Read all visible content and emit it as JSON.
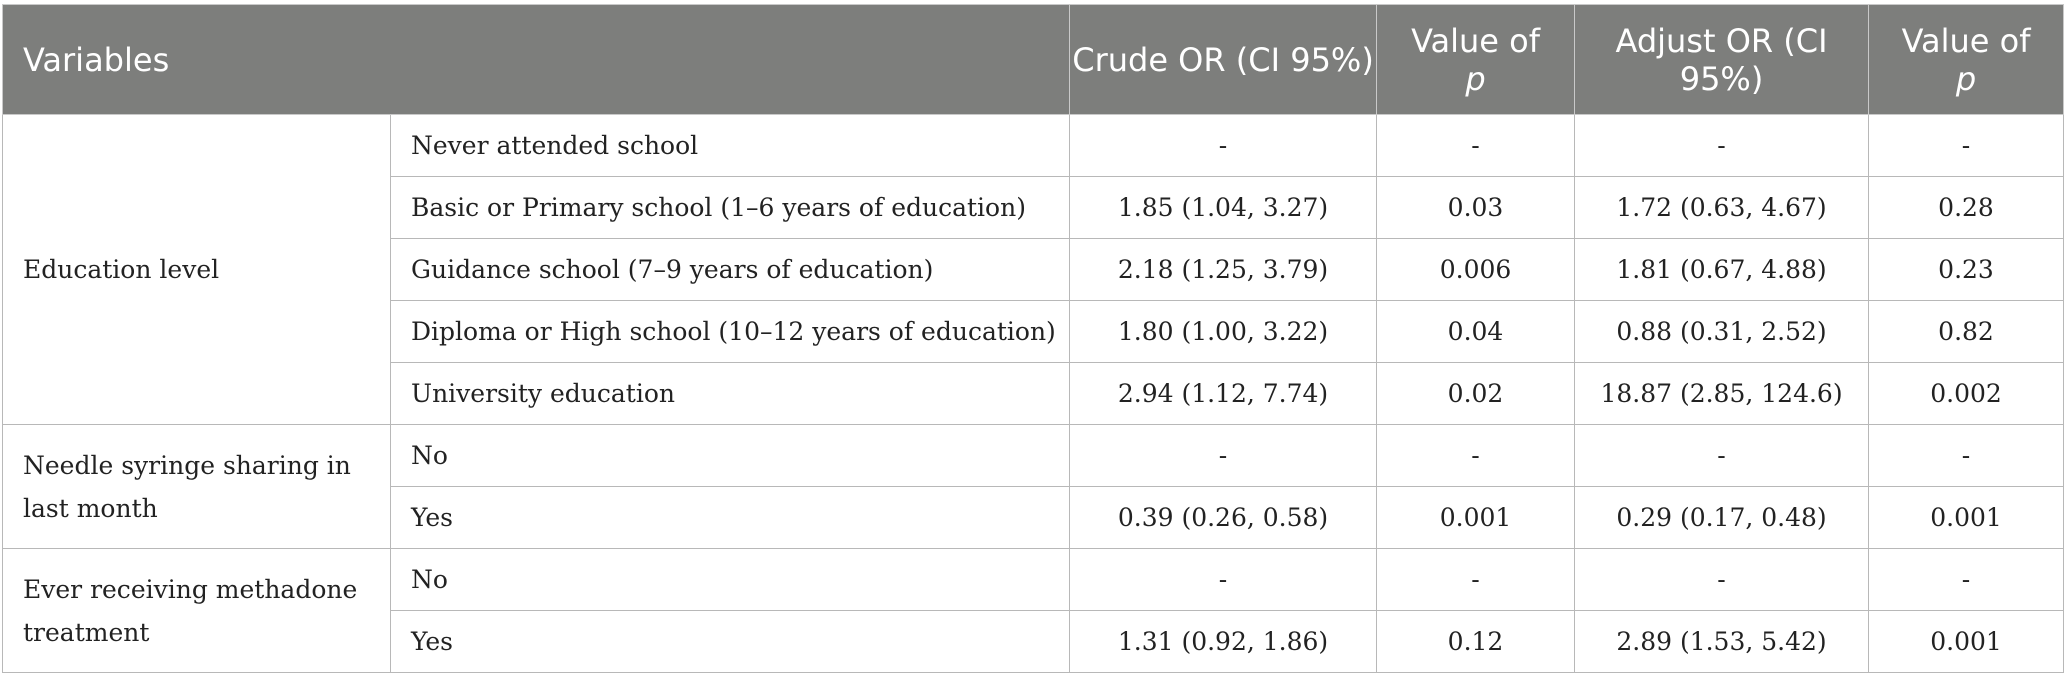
{
  "header": {
    "variables": "Variables",
    "crude_or": "Crude OR (CI 95%)",
    "value_of": "Value of",
    "p": "p",
    "adjust_or": "Adjust OR (CI 95%)",
    "value_of_2": "Value of",
    "p_2": "p"
  },
  "groups": [
    {
      "label": "Education level",
      "rows": [
        {
          "sub": "Never attended school",
          "crude": "-",
          "p1": "-",
          "adjust": "-",
          "p2": "-"
        },
        {
          "sub": "Basic or Primary school (1–6 years of education)",
          "crude": "1.85 (1.04, 3.27)",
          "p1": "0.03",
          "adjust": "1.72 (0.63, 4.67)",
          "p2": "0.28"
        },
        {
          "sub": "Guidance school (7–9 years of education)",
          "crude": "2.18 (1.25, 3.79)",
          "p1": "0.006",
          "adjust": "1.81 (0.67, 4.88)",
          "p2": "0.23"
        },
        {
          "sub": "Diploma or High school (10–12 years of education)",
          "crude": "1.80 (1.00, 3.22)",
          "p1": "0.04",
          "adjust": "0.88 (0.31, 2.52)",
          "p2": "0.82"
        },
        {
          "sub": "University education",
          "crude": "2.94 (1.12, 7.74)",
          "p1": "0.02",
          "adjust": "18.87 (2.85, 124.6)",
          "p2": "0.002"
        }
      ]
    },
    {
      "label": "Needle syringe sharing in last month",
      "rows": [
        {
          "sub": "No",
          "crude": "-",
          "p1": "-",
          "adjust": "-",
          "p2": "-"
        },
        {
          "sub": "Yes",
          "crude": "0.39 (0.26, 0.58)",
          "p1": "0.001",
          "adjust": "0.29 (0.17, 0.48)",
          "p2": "0.001"
        }
      ]
    },
    {
      "label": "Ever receiving methadone treatment",
      "rows": [
        {
          "sub": "No",
          "crude": "-",
          "p1": "-",
          "adjust": "-",
          "p2": "-"
        },
        {
          "sub": "Yes",
          "crude": "1.31 (0.92, 1.86)",
          "p1": "0.12",
          "adjust": "2.89 (1.53, 5.42)",
          "p2": "0.001"
        }
      ]
    }
  ]
}
